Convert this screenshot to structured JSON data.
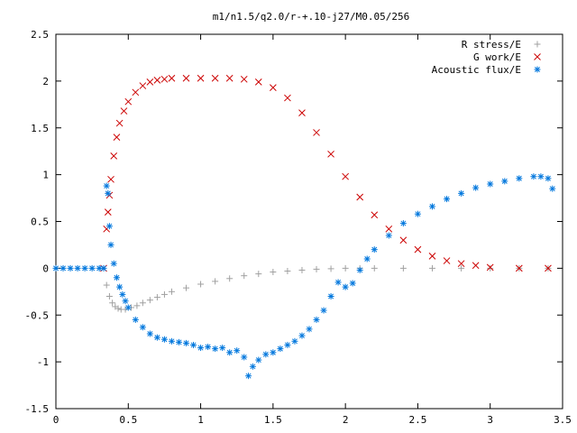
{
  "chart_data": {
    "type": "scatter",
    "title": "m1/n1.5/q2.0/r-+.10-j27/M0.05/256",
    "xlabel": "",
    "ylabel": "",
    "xlim": [
      0,
      3.5
    ],
    "ylim": [
      -1.5,
      2.5
    ],
    "xticks": [
      "0",
      "0.5",
      "1",
      "1.5",
      "2",
      "2.5",
      "3",
      "3.5"
    ],
    "yticks": [
      "-1.5",
      "-1",
      "-0.5",
      "0",
      "0.5",
      "1",
      "1.5",
      "2",
      "2.5"
    ],
    "grid": false,
    "legend_position": "top-right",
    "series": [
      {
        "name": "R stress/E",
        "marker": "plus",
        "color": "#a0a0a0",
        "x": [
          0.35,
          0.37,
          0.39,
          0.41,
          0.43,
          0.45,
          0.48,
          0.52,
          0.56,
          0.6,
          0.65,
          0.7,
          0.75,
          0.8,
          0.9,
          1.0,
          1.1,
          1.2,
          1.3,
          1.4,
          1.5,
          1.6,
          1.7,
          1.8,
          1.9,
          2.0,
          2.1,
          2.2,
          2.4,
          2.6,
          2.8,
          3.0,
          3.2,
          3.4
        ],
        "y": [
          -0.18,
          -0.3,
          -0.37,
          -0.41,
          -0.43,
          -0.44,
          -0.44,
          -0.42,
          -0.4,
          -0.37,
          -0.34,
          -0.31,
          -0.28,
          -0.25,
          -0.21,
          -0.17,
          -0.14,
          -0.11,
          -0.08,
          -0.06,
          -0.04,
          -0.03,
          -0.02,
          -0.01,
          -0.005,
          0,
          0,
          0,
          0,
          0,
          0,
          0,
          0,
          0
        ]
      },
      {
        "name": "G work/E",
        "marker": "cross",
        "color": "#cc0000",
        "x": [
          0.33,
          0.35,
          0.36,
          0.37,
          0.38,
          0.4,
          0.42,
          0.44,
          0.47,
          0.5,
          0.55,
          0.6,
          0.65,
          0.7,
          0.75,
          0.8,
          0.9,
          1.0,
          1.1,
          1.2,
          1.3,
          1.4,
          1.5,
          1.6,
          1.7,
          1.8,
          1.9,
          2.0,
          2.1,
          2.2,
          2.3,
          2.4,
          2.5,
          2.6,
          2.7,
          2.8,
          2.9,
          3.0,
          3.2,
          3.4
        ],
        "y": [
          0,
          0.42,
          0.6,
          0.78,
          0.95,
          1.2,
          1.4,
          1.55,
          1.68,
          1.78,
          1.88,
          1.95,
          1.99,
          2.01,
          2.02,
          2.03,
          2.03,
          2.03,
          2.03,
          2.03,
          2.02,
          1.99,
          1.93,
          1.82,
          1.66,
          1.45,
          1.22,
          0.98,
          0.76,
          0.57,
          0.42,
          0.3,
          0.2,
          0.13,
          0.08,
          0.05,
          0.03,
          0.01,
          0,
          0
        ]
      },
      {
        "name": "Acoustic flux/E",
        "marker": "star",
        "color": "#0077dd",
        "x": [
          0.0,
          0.05,
          0.1,
          0.15,
          0.2,
          0.25,
          0.3,
          0.33,
          0.35,
          0.36,
          0.37,
          0.38,
          0.4,
          0.42,
          0.44,
          0.46,
          0.48,
          0.5,
          0.55,
          0.6,
          0.65,
          0.7,
          0.75,
          0.8,
          0.85,
          0.9,
          0.95,
          1.0,
          1.05,
          1.1,
          1.15,
          1.2,
          1.25,
          1.3,
          1.33,
          1.36,
          1.4,
          1.45,
          1.5,
          1.55,
          1.6,
          1.65,
          1.7,
          1.75,
          1.8,
          1.85,
          1.9,
          1.95,
          2.0,
          2.05,
          2.1,
          2.15,
          2.2,
          2.3,
          2.4,
          2.5,
          2.6,
          2.7,
          2.8,
          2.9,
          3.0,
          3.1,
          3.2,
          3.3,
          3.35,
          3.4,
          3.43
        ],
        "y": [
          0,
          0,
          0,
          0,
          0,
          0,
          0,
          0,
          0.88,
          0.8,
          0.45,
          0.25,
          0.05,
          -0.1,
          -0.2,
          -0.28,
          -0.35,
          -0.42,
          -0.55,
          -0.63,
          -0.7,
          -0.74,
          -0.76,
          -0.78,
          -0.79,
          -0.8,
          -0.82,
          -0.85,
          -0.84,
          -0.86,
          -0.85,
          -0.9,
          -0.88,
          -0.95,
          -1.15,
          -1.05,
          -0.98,
          -0.92,
          -0.9,
          -0.86,
          -0.82,
          -0.78,
          -0.72,
          -0.65,
          -0.55,
          -0.45,
          -0.3,
          -0.15,
          -0.2,
          -0.16,
          -0.02,
          0.1,
          0.2,
          0.35,
          0.48,
          0.58,
          0.66,
          0.74,
          0.8,
          0.86,
          0.9,
          0.93,
          0.96,
          0.98,
          0.98,
          0.96,
          0.85
        ]
      }
    ]
  }
}
